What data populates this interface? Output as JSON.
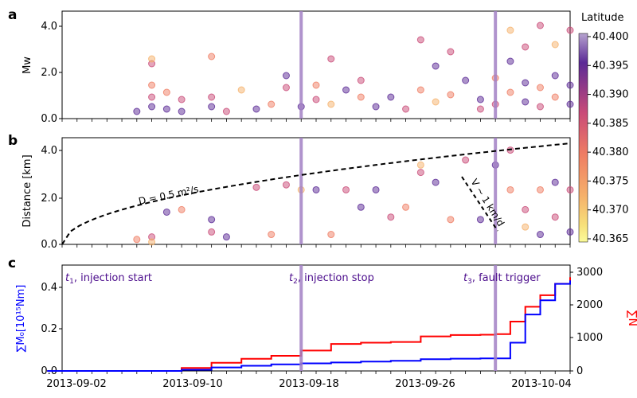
{
  "panels": {
    "a": {
      "letter": "a"
    },
    "b": {
      "letter": "b"
    },
    "c": {
      "letter": "c"
    }
  },
  "event_labels": {
    "t1": {
      "sym": "t",
      "sub": "1",
      "rest": ", injection start"
    },
    "t2": {
      "sym": "t",
      "sub": "2",
      "rest": ", injection stop"
    },
    "t3": {
      "sym": "t",
      "sub": "3",
      "rest": ", fault trigger"
    }
  },
  "annotations": {
    "diffusion": "D = 0.5 m²/s",
    "velocity": "V ~ 1 km/d"
  },
  "colorbar": {
    "title": "Latitude",
    "ticks": [
      "40.400",
      "40.395",
      "40.390",
      "40.385",
      "40.380",
      "40.375",
      "40.370",
      "40.365"
    ],
    "colors": [
      "#b6a3cf",
      "#5b2a96",
      "#c94b78",
      "#ef7d63",
      "#f5b16b",
      "#f7e07a",
      "#fbfb9a"
    ]
  },
  "colors": {
    "line_moment": "#0000ff",
    "line_count": "#ff0000",
    "event_line": "#a280c4",
    "label_purple": "#4b0c8c"
  },
  "chart_data": [
    {
      "type": "scatter",
      "panel": "a",
      "ylabel": "Mw",
      "ylim": [
        0,
        4.5
      ],
      "yticks": [
        "0.0",
        "2.0",
        "4.0"
      ],
      "x_range": [
        "2013-08-30",
        "2013-10-04"
      ],
      "events_dates": [
        "2013-09-16",
        "2013-09-29"
      ],
      "points": [
        {
          "d": "2013-09-05",
          "mw": 0.3
        },
        {
          "d": "2013-09-06",
          "mw": 0.5
        },
        {
          "d": "2013-09-06",
          "mw": 0.9
        },
        {
          "d": "2013-09-06",
          "mw": 1.4
        },
        {
          "d": "2013-09-06",
          "mw": 2.3
        },
        {
          "d": "2013-09-06",
          "mw": 2.5
        },
        {
          "d": "2013-09-07",
          "mw": 0.4
        },
        {
          "d": "2013-09-07",
          "mw": 1.1
        },
        {
          "d": "2013-09-08",
          "mw": 0.8
        },
        {
          "d": "2013-09-08",
          "mw": 0.3
        },
        {
          "d": "2013-09-10",
          "mw": 0.5
        },
        {
          "d": "2013-09-10",
          "mw": 0.9
        },
        {
          "d": "2013-09-10",
          "mw": 2.6
        },
        {
          "d": "2013-09-11",
          "mw": 0.3
        },
        {
          "d": "2013-09-12",
          "mw": 1.2
        },
        {
          "d": "2013-09-13",
          "mw": 0.4
        },
        {
          "d": "2013-09-14",
          "mw": 0.6
        },
        {
          "d": "2013-09-15",
          "mw": 1.3
        },
        {
          "d": "2013-09-15",
          "mw": 1.8
        },
        {
          "d": "2013-09-16",
          "mw": 0.5
        },
        {
          "d": "2013-09-17",
          "mw": 0.8
        },
        {
          "d": "2013-09-17",
          "mw": 1.4
        },
        {
          "d": "2013-09-18",
          "mw": 2.5
        },
        {
          "d": "2013-09-18",
          "mw": 0.6
        },
        {
          "d": "2013-09-19",
          "mw": 1.2
        },
        {
          "d": "2013-09-20",
          "mw": 0.9
        },
        {
          "d": "2013-09-20",
          "mw": 1.6
        },
        {
          "d": "2013-09-21",
          "mw": 0.5
        },
        {
          "d": "2013-09-22",
          "mw": 0.9
        },
        {
          "d": "2013-09-23",
          "mw": 0.4
        },
        {
          "d": "2013-09-24",
          "mw": 1.2
        },
        {
          "d": "2013-09-24",
          "mw": 3.3
        },
        {
          "d": "2013-09-25",
          "mw": 0.7
        },
        {
          "d": "2013-09-25",
          "mw": 2.2
        },
        {
          "d": "2013-09-26",
          "mw": 1.0
        },
        {
          "d": "2013-09-26",
          "mw": 2.8
        },
        {
          "d": "2013-09-27",
          "mw": 1.6
        },
        {
          "d": "2013-09-28",
          "mw": 0.8
        },
        {
          "d": "2013-09-28",
          "mw": 0.4
        },
        {
          "d": "2013-09-29",
          "mw": 1.7
        },
        {
          "d": "2013-09-29",
          "mw": 0.6
        },
        {
          "d": "2013-09-30",
          "mw": 3.7
        },
        {
          "d": "2013-09-30",
          "mw": 2.4
        },
        {
          "d": "2013-09-30",
          "mw": 1.1
        },
        {
          "d": "2013-10-01",
          "mw": 3.0
        },
        {
          "d": "2013-10-01",
          "mw": 1.5
        },
        {
          "d": "2013-10-01",
          "mw": 0.7
        },
        {
          "d": "2013-10-02",
          "mw": 3.9
        },
        {
          "d": "2013-10-02",
          "mw": 1.3
        },
        {
          "d": "2013-10-02",
          "mw": 0.5
        },
        {
          "d": "2013-10-03",
          "mw": 3.1
        },
        {
          "d": "2013-10-03",
          "mw": 1.8
        },
        {
          "d": "2013-10-03",
          "mw": 0.9
        },
        {
          "d": "2013-10-04",
          "mw": 3.7
        },
        {
          "d": "2013-10-04",
          "mw": 1.4
        },
        {
          "d": "2013-10-04",
          "mw": 0.6
        }
      ]
    },
    {
      "type": "scatter",
      "panel": "b",
      "ylabel": "Distance [km]",
      "ylim": [
        0,
        4.3
      ],
      "yticks": [
        "0.0",
        "2.0",
        "4.0"
      ],
      "x_range": [
        "2013-08-30",
        "2013-10-04"
      ],
      "curve": "D = 0.5 m²/s",
      "points": [
        {
          "d": "2013-09-05",
          "km": 0.2
        },
        {
          "d": "2013-09-06",
          "km": 0.3
        },
        {
          "d": "2013-09-06",
          "km": 0.1
        },
        {
          "d": "2013-09-07",
          "km": 1.3
        },
        {
          "d": "2013-09-08",
          "km": 1.4
        },
        {
          "d": "2013-09-10",
          "km": 0.5
        },
        {
          "d": "2013-09-10",
          "km": 1.0
        },
        {
          "d": "2013-09-11",
          "km": 0.3
        },
        {
          "d": "2013-09-13",
          "km": 2.3
        },
        {
          "d": "2013-09-14",
          "km": 0.4
        },
        {
          "d": "2013-09-15",
          "km": 2.4
        },
        {
          "d": "2013-09-16",
          "km": 2.2
        },
        {
          "d": "2013-09-17",
          "km": 2.2
        },
        {
          "d": "2013-09-18",
          "km": 0.4
        },
        {
          "d": "2013-09-19",
          "km": 2.2
        },
        {
          "d": "2013-09-20",
          "km": 1.5
        },
        {
          "d": "2013-09-21",
          "km": 2.2
        },
        {
          "d": "2013-09-22",
          "km": 1.1
        },
        {
          "d": "2013-09-23",
          "km": 1.5
        },
        {
          "d": "2013-09-24",
          "km": 2.9
        },
        {
          "d": "2013-09-24",
          "km": 3.2
        },
        {
          "d": "2013-09-25",
          "km": 2.5
        },
        {
          "d": "2013-09-26",
          "km": 1.0
        },
        {
          "d": "2013-09-27",
          "km": 3.4
        },
        {
          "d": "2013-09-28",
          "km": 1.0
        },
        {
          "d": "2013-09-29",
          "km": 3.2
        },
        {
          "d": "2013-09-30",
          "km": 3.8
        },
        {
          "d": "2013-09-30",
          "km": 2.2
        },
        {
          "d": "2013-10-01",
          "km": 1.4
        },
        {
          "d": "2013-10-01",
          "km": 0.7
        },
        {
          "d": "2013-10-02",
          "km": 0.4
        },
        {
          "d": "2013-10-02",
          "km": 2.2
        },
        {
          "d": "2013-10-03",
          "km": 1.1
        },
        {
          "d": "2013-10-03",
          "km": 2.5
        },
        {
          "d": "2013-10-04",
          "km": 0.5
        },
        {
          "d": "2013-10-04",
          "km": 2.2
        }
      ]
    },
    {
      "type": "line",
      "panel": "c",
      "ylabel_left": "∑M₀[10¹⁵Nm]",
      "ylabel_right": "∑N",
      "ylim_left": [
        0,
        0.45
      ],
      "ylim_right": [
        0,
        3000
      ],
      "yticks_left": [
        "0.0",
        "0.2",
        "0.4"
      ],
      "yticks_right": [
        "0",
        "1000",
        "2000",
        "3000"
      ],
      "xticks": [
        "2013-09-02",
        "2013-09-10",
        "2013-09-18",
        "2013-09-26",
        "2013-10-04"
      ],
      "series": [
        {
          "name": "∑M₀",
          "points": [
            [
              "2013-08-30",
              0.0
            ],
            [
              "2013-09-06",
              0.0
            ],
            [
              "2013-09-08",
              0.005
            ],
            [
              "2013-09-10",
              0.015
            ],
            [
              "2013-09-12",
              0.022
            ],
            [
              "2013-09-14",
              0.028
            ],
            [
              "2013-09-16",
              0.032
            ],
            [
              "2013-09-18",
              0.036
            ],
            [
              "2013-09-20",
              0.04
            ],
            [
              "2013-09-22",
              0.043
            ],
            [
              "2013-09-24",
              0.05
            ],
            [
              "2013-09-26",
              0.052
            ],
            [
              "2013-09-28",
              0.053
            ],
            [
              "2013-09-29",
              0.053
            ],
            [
              "2013-09-30",
              0.12
            ],
            [
              "2013-10-01",
              0.24
            ],
            [
              "2013-10-02",
              0.3
            ],
            [
              "2013-10-03",
              0.37
            ],
            [
              "2013-10-04",
              0.385
            ]
          ]
        },
        {
          "name": "∑N",
          "points": [
            [
              "2013-08-30",
              0
            ],
            [
              "2013-09-06",
              0
            ],
            [
              "2013-09-08",
              90
            ],
            [
              "2013-09-10",
              250
            ],
            [
              "2013-09-12",
              370
            ],
            [
              "2013-09-14",
              460
            ],
            [
              "2013-09-16",
              620
            ],
            [
              "2013-09-18",
              820
            ],
            [
              "2013-09-20",
              860
            ],
            [
              "2013-09-22",
              880
            ],
            [
              "2013-09-24",
              1050
            ],
            [
              "2013-09-26",
              1090
            ],
            [
              "2013-09-28",
              1100
            ],
            [
              "2013-09-29",
              1120
            ],
            [
              "2013-09-30",
              1500
            ],
            [
              "2013-10-01",
              1950
            ],
            [
              "2013-10-02",
              2300
            ],
            [
              "2013-10-03",
              2650
            ],
            [
              "2013-10-04",
              2850
            ]
          ]
        }
      ]
    }
  ]
}
